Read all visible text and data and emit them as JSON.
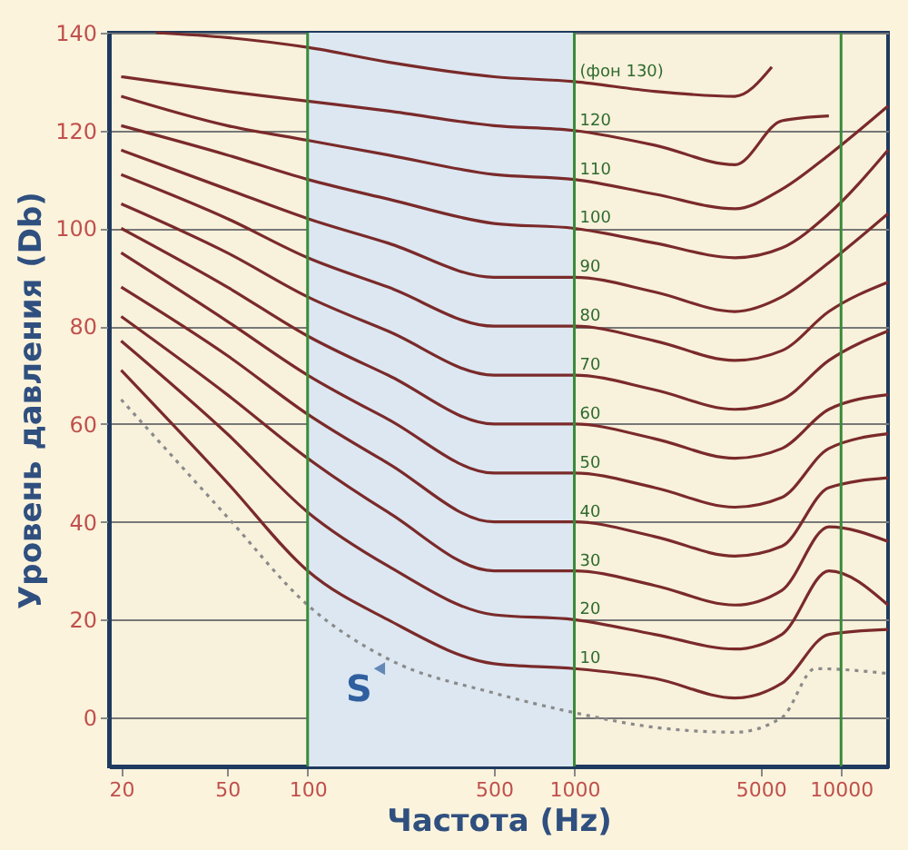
{
  "chart_data": {
    "type": "line",
    "xlabel": "Частота (Hz)",
    "ylabel": "Уровень давления (Db)",
    "log": "x",
    "xlim": [
      18,
      15000
    ],
    "xticks": [
      20,
      50,
      100,
      500,
      {
        "value": 1000,
        "label": "1000"
      },
      {
        "value": 5000,
        "label": "5000"
      },
      {
        "value": 10000,
        "label": "10000"
      }
    ],
    "ylim": [
      -10,
      140
    ],
    "yticks": [
      0,
      20,
      40,
      60,
      80,
      100,
      120,
      140
    ],
    "grid": "y",
    "series": [
      {
        "name": "(фон 130)",
        "color": "#7a2a2a",
        "line_style": "solid",
        "x": [
          27,
          50,
          100,
          200,
          500,
          1000,
          2000,
          4000,
          5500
        ],
        "values": [
          140,
          139,
          137,
          134,
          131,
          130,
          128,
          127,
          133
        ]
      },
      {
        "name": "120",
        "color": "#7a2a2a",
        "line_style": "solid",
        "x": [
          20,
          50,
          100,
          200,
          500,
          1000,
          2000,
          4000,
          6000,
          9000
        ],
        "values": [
          131,
          128,
          126,
          124,
          121,
          120,
          117,
          113,
          122,
          123
        ]
      },
      {
        "name": "110",
        "color": "#7a2a2a",
        "line_style": "solid",
        "x": [
          20,
          50,
          100,
          200,
          500,
          1000,
          2000,
          4000,
          6000,
          9000,
          15000
        ],
        "values": [
          127,
          121,
          118,
          115,
          111,
          110,
          107,
          104,
          108,
          115,
          125
        ]
      },
      {
        "name": "100",
        "color": "#7a2a2a",
        "line_style": "solid",
        "x": [
          20,
          50,
          100,
          200,
          500,
          1000,
          2000,
          4000,
          6000,
          9000,
          15000
        ],
        "values": [
          121,
          115,
          110,
          106,
          101,
          100,
          97,
          94,
          96,
          103,
          116
        ]
      },
      {
        "name": "90",
        "color": "#7a2a2a",
        "line_style": "solid",
        "x": [
          20,
          50,
          100,
          200,
          500,
          1000,
          2000,
          4000,
          6000,
          9000,
          15000
        ],
        "values": [
          116,
          108,
          102,
          97,
          90,
          90,
          87,
          83,
          86,
          93,
          103
        ]
      },
      {
        "name": "80",
        "color": "#7a2a2a",
        "line_style": "solid",
        "x": [
          20,
          50,
          100,
          200,
          500,
          1000,
          2000,
          4000,
          6000,
          9000,
          15000
        ],
        "values": [
          111,
          102,
          94,
          88,
          80,
          80,
          77,
          73,
          75,
          83,
          89
        ]
      },
      {
        "name": "70",
        "color": "#7a2a2a",
        "line_style": "solid",
        "x": [
          20,
          50,
          100,
          200,
          500,
          1000,
          2000,
          4000,
          6000,
          9000,
          15000
        ],
        "values": [
          105,
          95,
          86,
          79,
          70,
          70,
          67,
          63,
          65,
          73,
          79
        ]
      },
      {
        "name": "60",
        "color": "#7a2a2a",
        "line_style": "solid",
        "x": [
          20,
          50,
          100,
          200,
          500,
          1000,
          2000,
          4000,
          6000,
          9000,
          15000
        ],
        "values": [
          100,
          88,
          78,
          70,
          60,
          60,
          57,
          53,
          55,
          63,
          66
        ]
      },
      {
        "name": "50",
        "color": "#7a2a2a",
        "line_style": "solid",
        "x": [
          20,
          50,
          100,
          200,
          500,
          1000,
          2000,
          4000,
          6000,
          9000,
          15000
        ],
        "values": [
          95,
          81,
          70,
          61,
          50,
          50,
          47,
          43,
          45,
          55,
          58
        ]
      },
      {
        "name": "40",
        "color": "#7a2a2a",
        "line_style": "solid",
        "x": [
          20,
          50,
          100,
          200,
          500,
          1000,
          2000,
          4000,
          6000,
          9000,
          15000
        ],
        "values": [
          88,
          74,
          62,
          52,
          40,
          40,
          37,
          33,
          35,
          47,
          49
        ]
      },
      {
        "name": "30",
        "color": "#7a2a2a",
        "line_style": "solid",
        "x": [
          20,
          50,
          100,
          200,
          500,
          1000,
          2000,
          4000,
          6000,
          9000,
          15000
        ],
        "values": [
          82,
          66,
          53,
          42,
          30,
          30,
          27,
          23,
          26,
          39,
          36
        ]
      },
      {
        "name": "20",
        "color": "#7a2a2a",
        "line_style": "solid",
        "x": [
          20,
          50,
          100,
          200,
          500,
          1000,
          2000,
          4000,
          6000,
          9000,
          15000
        ],
        "values": [
          77,
          58,
          42,
          31,
          21,
          20,
          17,
          14,
          17,
          30,
          23
        ]
      },
      {
        "name": "10",
        "color": "#7a2a2a",
        "line_style": "solid",
        "x": [
          20,
          50,
          100,
          200,
          500,
          1000,
          2000,
          4000,
          6000,
          9000,
          15000
        ],
        "values": [
          71,
          48,
          30,
          20,
          11,
          10,
          8,
          4,
          7,
          17,
          18
        ]
      },
      {
        "color": "#8a8a8a",
        "line_style": "dotted",
        "x": [
          20,
          50,
          100,
          200,
          500,
          1000,
          2000,
          4000,
          6000,
          8000,
          15000
        ],
        "values": [
          65,
          41,
          23,
          12,
          5,
          1,
          -2,
          -3,
          0,
          10,
          9
        ]
      }
    ],
    "bands": [
      {
        "axis": "x",
        "from": 100,
        "to": 1000,
        "color": "#dce7f1"
      }
    ],
    "ref_lines": [
      {
        "axis": "x",
        "value": 100,
        "color": "#3a8a3a"
      },
      {
        "axis": "x",
        "value": 1000,
        "color": "#3a8a3a"
      },
      {
        "axis": "x",
        "value": 10000,
        "color": "#3a8a3a"
      }
    ],
    "annotations": [
      {
        "text": "S",
        "x": 186,
        "y": 10
      }
    ]
  }
}
